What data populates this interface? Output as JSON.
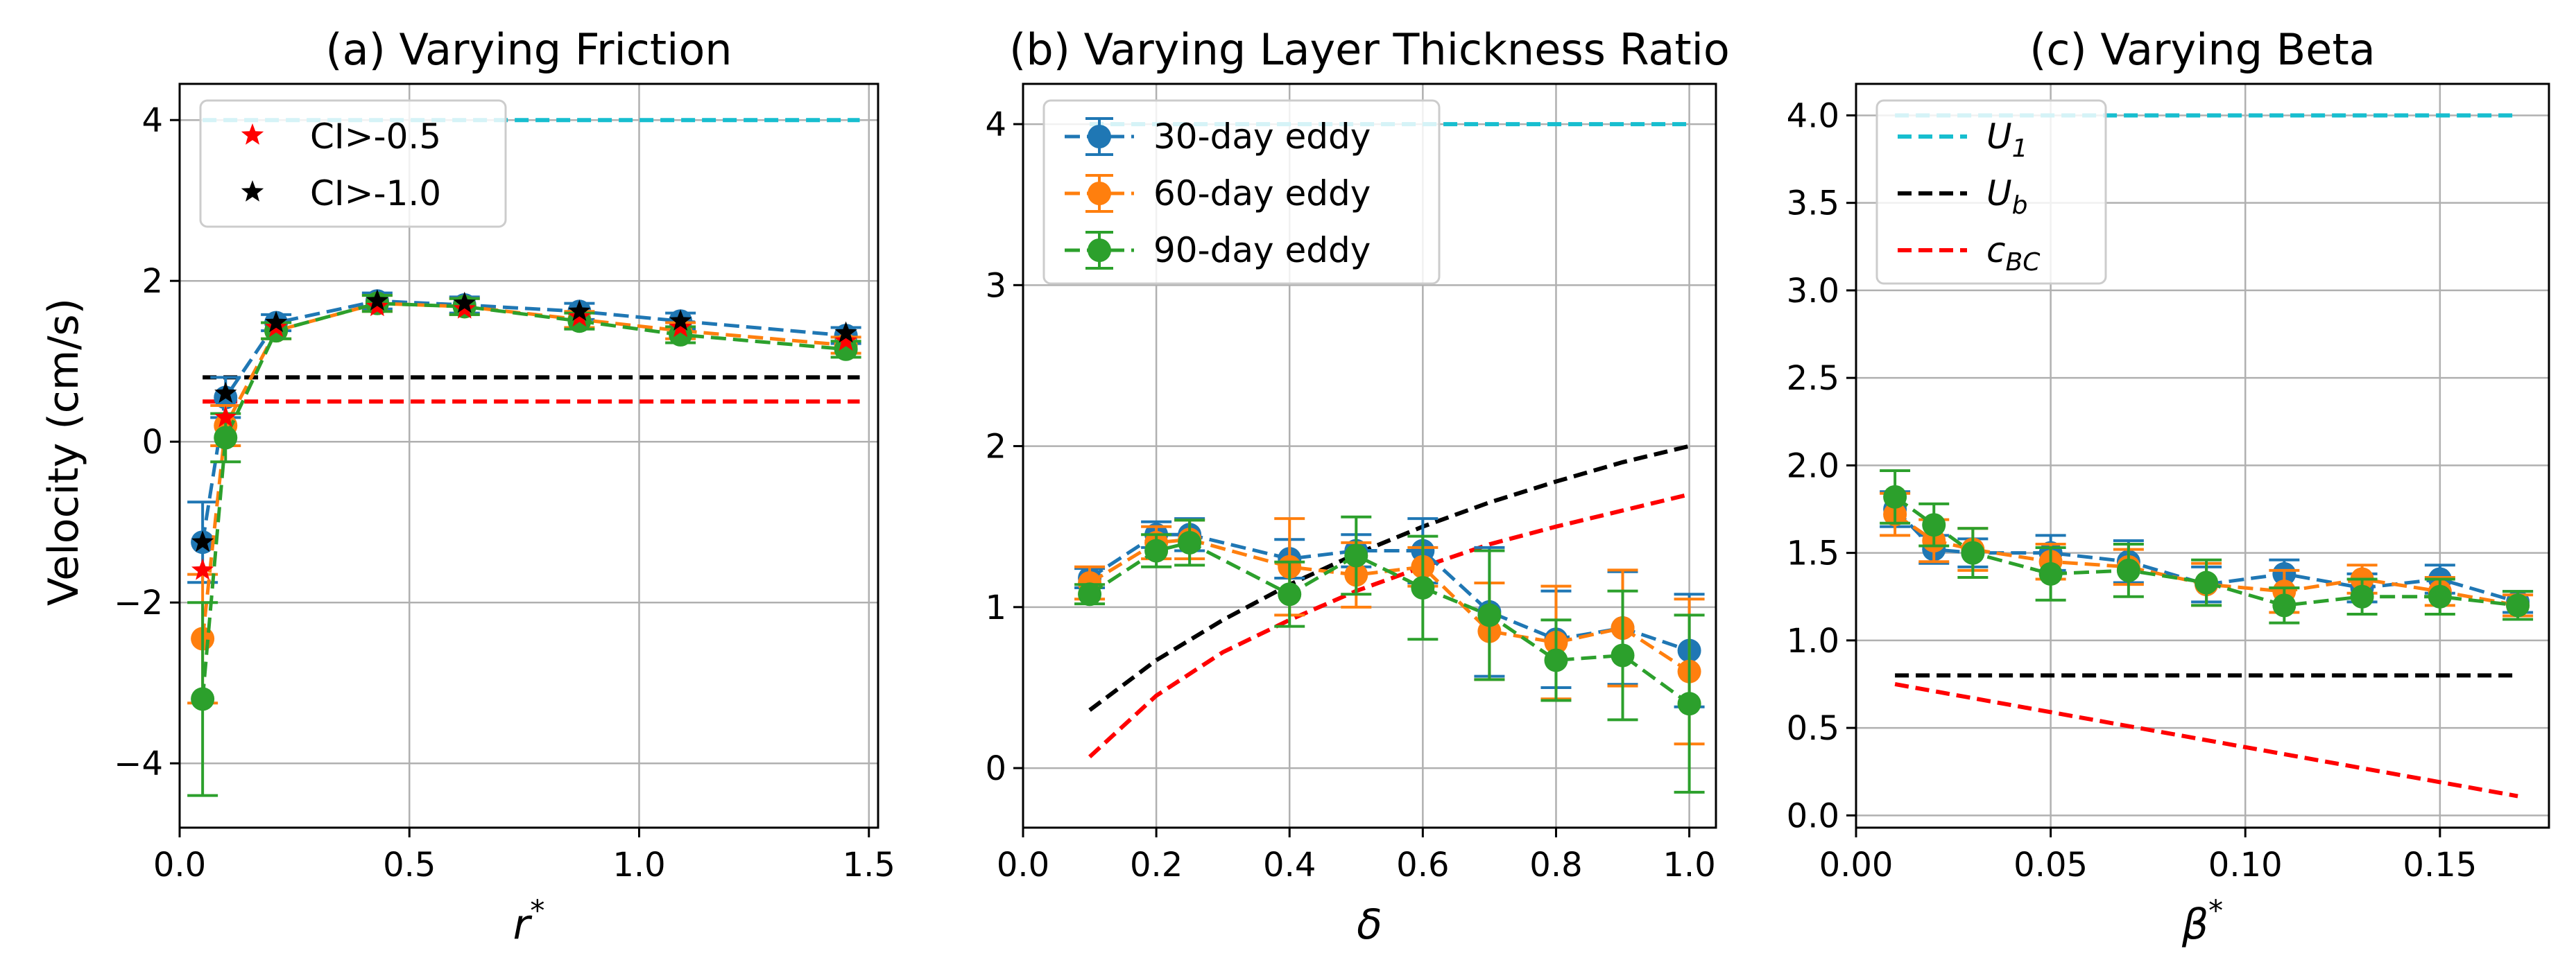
{
  "figure": {
    "ylabel": "Velocity (cm/s)"
  },
  "chart_data": [
    {
      "id": "a",
      "type": "line",
      "title": "(a) Varying Friction",
      "xlabel": "r",
      "xlabel_sup": "*",
      "xlim": [
        0,
        1.52
      ],
      "ylim": [
        -4.8,
        4.45
      ],
      "xticks": [
        0.0,
        0.5,
        1.0,
        1.5
      ],
      "xtick_labels": [
        "0.0",
        "0.5",
        "1.0",
        "1.5"
      ],
      "yticks": [
        -4,
        -2,
        0,
        2,
        4
      ],
      "ytick_labels": [
        "−4",
        "−2",
        "0",
        "2",
        "4"
      ],
      "grid": true,
      "legend_position": "top-left",
      "series": [
        {
          "name": "30-day eddy",
          "color": "#1f77b4",
          "x": [
            0.05,
            0.1,
            0.21,
            0.43,
            0.62,
            0.87,
            1.09,
            1.45
          ],
          "y": [
            -1.25,
            0.55,
            1.48,
            1.75,
            1.7,
            1.62,
            1.5,
            1.32
          ],
          "err": [
            0.5,
            0.25,
            0.1,
            0.1,
            0.1,
            0.1,
            0.1,
            0.1
          ]
        },
        {
          "name": "60-day eddy",
          "color": "#ff7f0e",
          "x": [
            0.05,
            0.1,
            0.21,
            0.43,
            0.62,
            0.87,
            1.09,
            1.45
          ],
          "y": [
            -2.45,
            0.2,
            1.38,
            1.72,
            1.68,
            1.52,
            1.38,
            1.2
          ],
          "err": [
            0.8,
            0.25,
            0.1,
            0.1,
            0.1,
            0.1,
            0.1,
            0.1
          ]
        },
        {
          "name": "90-day eddy",
          "color": "#2ca02c",
          "x": [
            0.05,
            0.1,
            0.21,
            0.43,
            0.62,
            0.87,
            1.09,
            1.45
          ],
          "y": [
            -3.2,
            0.05,
            1.38,
            1.72,
            1.68,
            1.5,
            1.33,
            1.15
          ],
          "err": [
            1.2,
            0.3,
            0.1,
            0.1,
            0.1,
            0.1,
            0.1,
            0.1
          ]
        }
      ],
      "markers": [
        {
          "name": "CI>-0.5",
          "color": "#ff0000",
          "x": [
            0.05,
            0.1,
            0.21,
            0.43,
            0.62,
            0.87,
            1.09,
            1.45
          ],
          "y": [
            -1.6,
            0.3,
            1.42,
            1.68,
            1.65,
            1.55,
            1.42,
            1.25
          ]
        },
        {
          "name": "CI>-1.0",
          "color": "#000000",
          "x": [
            0.05,
            0.1,
            0.21,
            0.43,
            0.62,
            0.87,
            1.09,
            1.45
          ],
          "y": [
            -1.25,
            0.6,
            1.48,
            1.75,
            1.72,
            1.62,
            1.5,
            1.35
          ]
        }
      ],
      "reference_lines": [
        {
          "name": "U1",
          "color": "#17becf",
          "x": [
            0.05,
            1.48
          ],
          "y": [
            4.0,
            4.0
          ]
        },
        {
          "name": "Ub",
          "color": "#000000",
          "x": [
            0.05,
            1.48
          ],
          "y": [
            0.8,
            0.8
          ]
        },
        {
          "name": "cBC",
          "color": "#ff0000",
          "x": [
            0.05,
            1.48
          ],
          "y": [
            0.5,
            0.5
          ]
        }
      ],
      "legend": [
        {
          "label": "CI>-0.5",
          "color": "#ff0000",
          "symbol": "star"
        },
        {
          "label": "CI>-1.0",
          "color": "#000000",
          "symbol": "star"
        }
      ]
    },
    {
      "id": "b",
      "type": "line",
      "title": "(b) Varying Layer Thickness Ratio",
      "xlabel": "δ",
      "xlabel_sup": "",
      "xlim": [
        0,
        1.04
      ],
      "ylim": [
        -0.37,
        4.25
      ],
      "xticks": [
        0.0,
        0.2,
        0.4,
        0.6,
        0.8,
        1.0
      ],
      "xtick_labels": [
        "0.0",
        "0.2",
        "0.4",
        "0.6",
        "0.8",
        "1.0"
      ],
      "yticks": [
        0,
        1,
        2,
        3,
        4
      ],
      "ytick_labels": [
        "0",
        "1",
        "2",
        "3",
        "4"
      ],
      "grid": true,
      "legend_position": "top-left",
      "series": [
        {
          "name": "30-day eddy",
          "color": "#1f77b4",
          "x": [
            0.1,
            0.2,
            0.25,
            0.4,
            0.5,
            0.6,
            0.7,
            0.8,
            0.9,
            1.0
          ],
          "y": [
            1.18,
            1.45,
            1.45,
            1.3,
            1.35,
            1.35,
            0.97,
            0.8,
            0.87,
            0.73
          ],
          "err": [
            0.06,
            0.08,
            0.1,
            0.12,
            0.1,
            0.2,
            0.4,
            0.3,
            0.35,
            0.35
          ]
        },
        {
          "name": "60-day eddy",
          "color": "#ff7f0e",
          "x": [
            0.1,
            0.2,
            0.25,
            0.4,
            0.5,
            0.6,
            0.7,
            0.8,
            0.9,
            1.0
          ],
          "y": [
            1.15,
            1.4,
            1.42,
            1.25,
            1.2,
            1.25,
            0.85,
            0.78,
            0.87,
            0.6
          ],
          "err": [
            0.1,
            0.1,
            0.12,
            0.3,
            0.2,
            0.12,
            0.3,
            0.35,
            0.36,
            0.45
          ]
        },
        {
          "name": "90-day eddy",
          "color": "#2ca02c",
          "x": [
            0.1,
            0.2,
            0.25,
            0.4,
            0.5,
            0.6,
            0.7,
            0.8,
            0.9,
            1.0
          ],
          "y": [
            1.08,
            1.35,
            1.4,
            1.08,
            1.32,
            1.12,
            0.95,
            0.67,
            0.7,
            0.4
          ],
          "err": [
            0.06,
            0.1,
            0.14,
            0.2,
            0.24,
            0.32,
            0.4,
            0.25,
            0.4,
            0.55
          ]
        }
      ],
      "reference_lines": [
        {
          "name": "U1",
          "color": "#17becf",
          "x": [
            0.1,
            1.0
          ],
          "y": [
            4.0,
            4.0
          ]
        },
        {
          "name": "Ub",
          "color": "#000000",
          "x": [
            0.1,
            0.2,
            0.3,
            0.4,
            0.5,
            0.6,
            0.7,
            0.8,
            0.9,
            1.0
          ],
          "y": [
            0.36,
            0.67,
            0.92,
            1.14,
            1.33,
            1.5,
            1.65,
            1.78,
            1.9,
            2.0
          ]
        },
        {
          "name": "cBC",
          "color": "#ff0000",
          "x": [
            0.1,
            0.2,
            0.3,
            0.4,
            0.5,
            0.6,
            0.7,
            0.8,
            0.9,
            1.0
          ],
          "y": [
            0.07,
            0.45,
            0.72,
            0.92,
            1.1,
            1.25,
            1.39,
            1.5,
            1.6,
            1.7
          ]
        }
      ],
      "legend": [
        {
          "label": "30-day eddy",
          "color": "#1f77b4",
          "symbol": "errorbar"
        },
        {
          "label": "60-day eddy",
          "color": "#ff7f0e",
          "symbol": "errorbar"
        },
        {
          "label": "90-day eddy",
          "color": "#2ca02c",
          "symbol": "errorbar"
        }
      ]
    },
    {
      "id": "c",
      "type": "line",
      "title": "(c) Varying Beta",
      "xlabel": "β",
      "xlabel_sup": "*",
      "xlim": [
        0,
        0.178
      ],
      "ylim": [
        -0.07,
        4.18
      ],
      "xticks": [
        0.0,
        0.05,
        0.1,
        0.15
      ],
      "xtick_labels": [
        "0.00",
        "0.05",
        "0.10",
        "0.15"
      ],
      "yticks": [
        0.0,
        0.5,
        1.0,
        1.5,
        2.0,
        2.5,
        3.0,
        3.5,
        4.0
      ],
      "ytick_labels": [
        "0.0",
        "0.5",
        "1.0",
        "1.5",
        "2.0",
        "2.5",
        "3.0",
        "3.5",
        "4.0"
      ],
      "grid": true,
      "legend_position": "top-left",
      "series": [
        {
          "name": "30-day eddy",
          "color": "#1f77b4",
          "x": [
            0.01,
            0.02,
            0.03,
            0.05,
            0.07,
            0.09,
            0.11,
            0.13,
            0.15,
            0.17
          ],
          "y": [
            1.75,
            1.52,
            1.5,
            1.5,
            1.45,
            1.32,
            1.38,
            1.3,
            1.35,
            1.22
          ],
          "err": [
            0.1,
            0.08,
            0.08,
            0.1,
            0.12,
            0.1,
            0.08,
            0.08,
            0.08,
            0.06
          ]
        },
        {
          "name": "60-day eddy",
          "color": "#ff7f0e",
          "x": [
            0.01,
            0.02,
            0.03,
            0.05,
            0.07,
            0.09,
            0.11,
            0.13,
            0.15,
            0.17
          ],
          "y": [
            1.72,
            1.57,
            1.52,
            1.45,
            1.42,
            1.32,
            1.28,
            1.35,
            1.28,
            1.2
          ],
          "err": [
            0.12,
            0.12,
            0.12,
            0.1,
            0.1,
            0.12,
            0.12,
            0.08,
            0.08,
            0.06
          ]
        },
        {
          "name": "90-day eddy",
          "color": "#2ca02c",
          "x": [
            0.01,
            0.02,
            0.03,
            0.05,
            0.07,
            0.09,
            0.11,
            0.13,
            0.15,
            0.17
          ],
          "y": [
            1.82,
            1.66,
            1.5,
            1.38,
            1.4,
            1.33,
            1.2,
            1.25,
            1.25,
            1.2
          ],
          "err": [
            0.15,
            0.12,
            0.14,
            0.15,
            0.15,
            0.13,
            0.1,
            0.1,
            0.1,
            0.08
          ]
        }
      ],
      "reference_lines": [
        {
          "name": "U1",
          "color": "#17becf",
          "x": [
            0.01,
            0.17
          ],
          "y": [
            4.0,
            4.0
          ]
        },
        {
          "name": "Ub",
          "color": "#000000",
          "x": [
            0.01,
            0.17
          ],
          "y": [
            0.8,
            0.8
          ]
        },
        {
          "name": "cBC",
          "color": "#ff0000",
          "x": [
            0.01,
            0.17
          ],
          "y": [
            0.75,
            0.11
          ]
        }
      ],
      "legend": [
        {
          "label": "U",
          "sub": "1",
          "color": "#17becf",
          "symbol": "dashed"
        },
        {
          "label": "U",
          "sub": "b",
          "color": "#000000",
          "symbol": "dashed"
        },
        {
          "label": "c",
          "sub": "BC",
          "color": "#ff0000",
          "symbol": "dashed"
        }
      ]
    }
  ]
}
